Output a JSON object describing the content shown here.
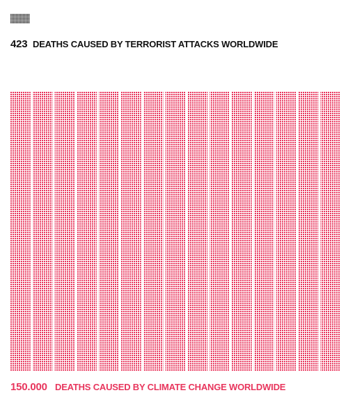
{
  "chart_data": {
    "type": "unit",
    "series": [
      {
        "value": 423,
        "value_label": "423",
        "label": "DEATHS CAUSED BY TERRORIST ATTACKS WORLDWIDE",
        "color": "#111111"
      },
      {
        "value": 150000,
        "value_label": "150.000",
        "label": "DEATHS CAUSED BY CLIMATE CHANGE WORLDWIDE",
        "color": "#e8365d"
      }
    ]
  }
}
